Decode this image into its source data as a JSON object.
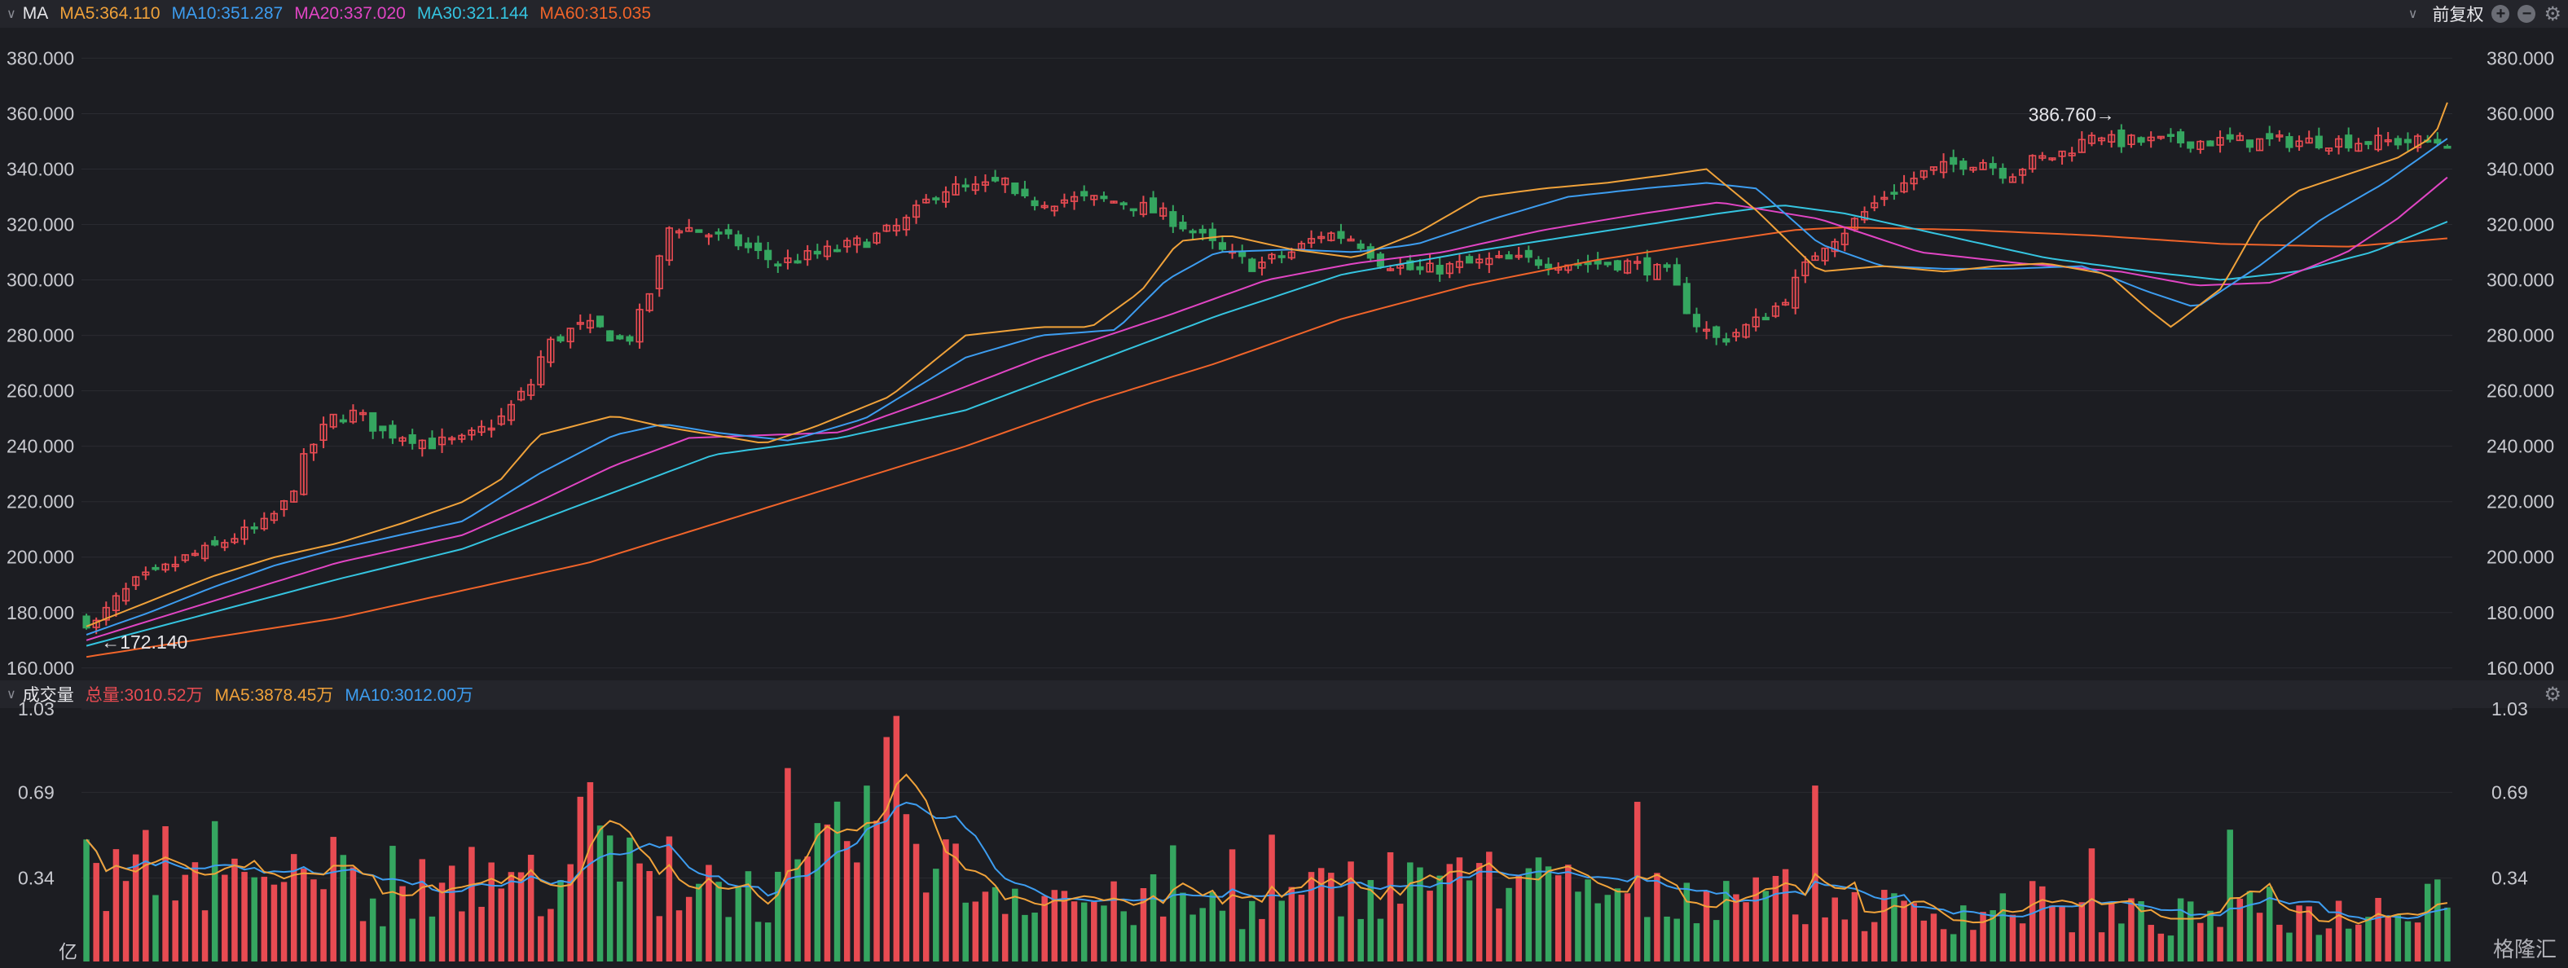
{
  "colors": {
    "up": "#e84b52",
    "down": "#35a660",
    "ma5": "#f0a23a",
    "ma10": "#3d9df0",
    "ma20": "#e145c4",
    "ma30": "#35c4e0",
    "ma60": "#f0642a",
    "grid": "#2a2b31",
    "axis": "#c8c9cf"
  },
  "price_header": {
    "name": "MA",
    "items": [
      {
        "text": "MA5:364.110",
        "color": "#f0a23a"
      },
      {
        "text": "MA10:351.287",
        "color": "#3d9df0"
      },
      {
        "text": "MA20:337.020",
        "color": "#e145c4"
      },
      {
        "text": "MA30:321.144",
        "color": "#35c4e0"
      },
      {
        "text": "MA60:315.035",
        "color": "#f0642a"
      }
    ],
    "adjust_label": "前复权"
  },
  "volume_header": {
    "name": "成交量",
    "items": [
      {
        "text": "总量:3010.52万",
        "color": "#e84b52"
      },
      {
        "text": "MA5:3878.45万",
        "color": "#f0a23a"
      },
      {
        "text": "MA10:3012.00万",
        "color": "#3d9df0"
      }
    ]
  },
  "watermark": "格隆汇",
  "chart_data": [
    {
      "type": "candlestick",
      "y_ticks": [
        160,
        180,
        200,
        220,
        240,
        260,
        280,
        300,
        320,
        340,
        360,
        380
      ],
      "y_tick_labels": [
        "160.000",
        "180.000",
        "200.000",
        "220.000",
        "240.000",
        "260.000",
        "280.000",
        "300.000",
        "320.000",
        "340.000",
        "360.000",
        "380.000"
      ],
      "ylim": [
        157,
        391
      ],
      "bar_count": 240,
      "high_annotation": "386.760→",
      "low_annotation": "←172.140",
      "close_anchors": [
        [
          0,
          177
        ],
        [
          8,
          176
        ],
        [
          20,
          183
        ],
        [
          40,
          191
        ],
        [
          60,
          195
        ],
        [
          80,
          200
        ],
        [
          100,
          203
        ],
        [
          115,
          207
        ],
        [
          140,
          211
        ],
        [
          160,
          220
        ],
        [
          175,
          237
        ],
        [
          195,
          250
        ],
        [
          215,
          252
        ],
        [
          235,
          245
        ],
        [
          255,
          244
        ],
        [
          275,
          241
        ],
        [
          300,
          242
        ],
        [
          330,
          250
        ],
        [
          355,
          263
        ],
        [
          365,
          276
        ],
        [
          390,
          283
        ],
        [
          405,
          283
        ],
        [
          430,
          277
        ],
        [
          446,
          292
        ],
        [
          465,
          320
        ],
        [
          485,
          318
        ],
        [
          500,
          316
        ],
        [
          520,
          313
        ],
        [
          550,
          306
        ],
        [
          580,
          309
        ],
        [
          620,
          314
        ],
        [
          650,
          320
        ],
        [
          680,
          333
        ],
        [
          710,
          333
        ],
        [
          735,
          336
        ],
        [
          740,
          328
        ],
        [
          780,
          329
        ],
        [
          800,
          329
        ],
        [
          830,
          328
        ],
        [
          860,
          323
        ],
        [
          880,
          318
        ],
        [
          905,
          310
        ],
        [
          930,
          305
        ],
        [
          960,
          310
        ],
        [
          985,
          317
        ],
        [
          1010,
          315
        ],
        [
          1030,
          307
        ],
        [
          1060,
          303
        ],
        [
          1090,
          305
        ],
        [
          1120,
          307
        ],
        [
          1150,
          307
        ],
        [
          1190,
          306
        ],
        [
          1230,
          306
        ],
        [
          1260,
          302
        ],
        [
          1280,
          285
        ],
        [
          1300,
          278
        ],
        [
          1330,
          285
        ],
        [
          1350,
          292
        ],
        [
          1380,
          312
        ],
        [
          1400,
          318
        ],
        [
          1430,
          330
        ],
        [
          1460,
          338
        ],
        [
          1490,
          342
        ],
        [
          1510,
          343
        ],
        [
          1530,
          338
        ],
        [
          1550,
          343
        ],
        [
          1570,
          345
        ],
        [
          1590,
          350
        ],
        [
          1600,
          355
        ],
        [
          1610,
          350
        ]
      ],
      "ma5_anchors": [
        [
          0,
          175
        ],
        [
          50,
          184
        ],
        [
          100,
          193
        ],
        [
          150,
          200
        ],
        [
          200,
          205
        ],
        [
          250,
          212
        ],
        [
          300,
          220
        ],
        [
          330,
          228
        ],
        [
          360,
          244
        ],
        [
          420,
          251
        ],
        [
          460,
          247
        ],
        [
          500,
          244
        ],
        [
          540,
          241
        ],
        [
          580,
          247
        ],
        [
          640,
          258
        ],
        [
          700,
          280
        ],
        [
          760,
          283
        ],
        [
          800,
          283
        ],
        [
          840,
          296
        ],
        [
          870,
          314
        ],
        [
          910,
          316
        ],
        [
          960,
          311
        ],
        [
          1010,
          308
        ],
        [
          1060,
          317
        ],
        [
          1110,
          330
        ],
        [
          1160,
          333
        ],
        [
          1210,
          335
        ],
        [
          1260,
          338
        ],
        [
          1290,
          340
        ],
        [
          1330,
          325
        ],
        [
          1380,
          303
        ],
        [
          1430,
          305
        ],
        [
          1480,
          303
        ],
        [
          1520,
          305
        ],
        [
          1560,
          306
        ],
        [
          1610,
          302
        ],
        [
          1640,
          290
        ],
        [
          1660,
          283
        ],
        [
          1700,
          297
        ],
        [
          1730,
          321
        ],
        [
          1760,
          332
        ],
        [
          1800,
          338
        ],
        [
          1840,
          344
        ],
        [
          1870,
          352
        ],
        [
          1880,
          364
        ]
      ],
      "ma10_anchors": [
        [
          0,
          172
        ],
        [
          50,
          180
        ],
        [
          100,
          189
        ],
        [
          150,
          197
        ],
        [
          200,
          203
        ],
        [
          250,
          208
        ],
        [
          300,
          213
        ],
        [
          360,
          230
        ],
        [
          420,
          244
        ],
        [
          460,
          248
        ],
        [
          500,
          245
        ],
        [
          560,
          242
        ],
        [
          620,
          250
        ],
        [
          700,
          272
        ],
        [
          760,
          280
        ],
        [
          820,
          282
        ],
        [
          860,
          300
        ],
        [
          900,
          310
        ],
        [
          960,
          311
        ],
        [
          1010,
          310
        ],
        [
          1060,
          313
        ],
        [
          1120,
          322
        ],
        [
          1180,
          330
        ],
        [
          1240,
          333
        ],
        [
          1290,
          335
        ],
        [
          1330,
          333
        ],
        [
          1380,
          313
        ],
        [
          1430,
          305
        ],
        [
          1480,
          304
        ],
        [
          1530,
          304
        ],
        [
          1590,
          305
        ],
        [
          1640,
          296
        ],
        [
          1680,
          290
        ],
        [
          1730,
          305
        ],
        [
          1780,
          322
        ],
        [
          1830,
          335
        ],
        [
          1880,
          351
        ]
      ],
      "ma20_anchors": [
        [
          0,
          170
        ],
        [
          100,
          184
        ],
        [
          200,
          198
        ],
        [
          300,
          208
        ],
        [
          360,
          220
        ],
        [
          420,
          233
        ],
        [
          480,
          243
        ],
        [
          540,
          244
        ],
        [
          600,
          245
        ],
        [
          680,
          258
        ],
        [
          760,
          272
        ],
        [
          860,
          287
        ],
        [
          940,
          300
        ],
        [
          1010,
          306
        ],
        [
          1080,
          310
        ],
        [
          1160,
          318
        ],
        [
          1240,
          324
        ],
        [
          1300,
          328
        ],
        [
          1380,
          322
        ],
        [
          1460,
          310
        ],
        [
          1540,
          306
        ],
        [
          1620,
          303
        ],
        [
          1680,
          298
        ],
        [
          1740,
          299
        ],
        [
          1800,
          310
        ],
        [
          1840,
          322
        ],
        [
          1880,
          337
        ]
      ],
      "ma30_anchors": [
        [
          0,
          168
        ],
        [
          100,
          180
        ],
        [
          200,
          192
        ],
        [
          300,
          203
        ],
        [
          400,
          220
        ],
        [
          500,
          237
        ],
        [
          600,
          243
        ],
        [
          700,
          253
        ],
        [
          800,
          270
        ],
        [
          900,
          287
        ],
        [
          1000,
          302
        ],
        [
          1100,
          310
        ],
        [
          1200,
          317
        ],
        [
          1300,
          324
        ],
        [
          1350,
          327
        ],
        [
          1400,
          324
        ],
        [
          1480,
          316
        ],
        [
          1560,
          308
        ],
        [
          1640,
          303
        ],
        [
          1700,
          300
        ],
        [
          1760,
          303
        ],
        [
          1820,
          310
        ],
        [
          1880,
          321
        ]
      ],
      "ma60_anchors": [
        [
          0,
          164
        ],
        [
          200,
          178
        ],
        [
          400,
          198
        ],
        [
          500,
          212
        ],
        [
          600,
          226
        ],
        [
          700,
          240
        ],
        [
          800,
          256
        ],
        [
          900,
          270
        ],
        [
          1000,
          286
        ],
        [
          1100,
          298
        ],
        [
          1200,
          307
        ],
        [
          1300,
          314
        ],
        [
          1360,
          318
        ],
        [
          1400,
          319
        ],
        [
          1500,
          318
        ],
        [
          1600,
          316
        ],
        [
          1700,
          313
        ],
        [
          1800,
          312
        ],
        [
          1880,
          315
        ]
      ]
    },
    {
      "type": "bar",
      "y_ticks": [
        0.34,
        0.69,
        1.03
      ],
      "y_tick_labels": [
        "0.34",
        "0.69",
        "1.03"
      ],
      "unit_label": "亿",
      "ylim": [
        0,
        1.03
      ],
      "vol_anchors": [
        [
          0,
          0.35
        ],
        [
          20,
          0.33
        ],
        [
          40,
          0.34
        ],
        [
          60,
          0.42
        ],
        [
          70,
          0.38
        ],
        [
          90,
          0.34
        ],
        [
          110,
          0.3
        ],
        [
          130,
          0.29
        ],
        [
          150,
          0.27
        ],
        [
          170,
          0.33
        ],
        [
          175,
          0.62
        ],
        [
          185,
          0.4
        ],
        [
          200,
          0.36
        ],
        [
          220,
          0.3
        ],
        [
          240,
          0.24
        ],
        [
          260,
          0.3
        ],
        [
          290,
          0.27
        ],
        [
          310,
          0.26
        ],
        [
          330,
          0.33
        ],
        [
          350,
          0.3
        ],
        [
          370,
          0.36
        ],
        [
          390,
          0.4
        ],
        [
          400,
          0.58
        ],
        [
          420,
          0.4
        ],
        [
          440,
          0.32
        ],
        [
          460,
          0.28
        ],
        [
          480,
          0.31
        ],
        [
          500,
          0.34
        ],
        [
          520,
          0.28
        ],
        [
          545,
          0.26
        ],
        [
          565,
          0.3
        ],
        [
          580,
          0.37
        ],
        [
          600,
          0.45
        ],
        [
          620,
          0.56
        ],
        [
          640,
          0.72
        ],
        [
          660,
          0.55
        ],
        [
          680,
          0.4
        ],
        [
          700,
          0.31
        ],
        [
          730,
          0.29
        ],
        [
          760,
          0.29
        ],
        [
          790,
          0.25
        ],
        [
          820,
          0.22
        ],
        [
          850,
          0.24
        ],
        [
          880,
          0.2
        ],
        [
          900,
          0.23
        ],
        [
          940,
          0.2
        ],
        [
          970,
          0.25
        ],
        [
          1000,
          0.3
        ],
        [
          1030,
          0.31
        ],
        [
          1060,
          0.36
        ],
        [
          1090,
          0.29
        ],
        [
          1110,
          0.35
        ],
        [
          1130,
          0.33
        ],
        [
          1160,
          0.3
        ],
        [
          1200,
          0.27
        ],
        [
          1240,
          0.24
        ],
        [
          1280,
          0.27
        ],
        [
          1310,
          0.3
        ],
        [
          1340,
          0.27
        ],
        [
          1380,
          0.25
        ],
        [
          1420,
          0.21
        ],
        [
          1460,
          0.19
        ],
        [
          1500,
          0.2
        ],
        [
          1540,
          0.22
        ],
        [
          1580,
          0.19
        ],
        [
          1620,
          0.18
        ],
        [
          1660,
          0.17
        ],
        [
          1700,
          0.19
        ],
        [
          1740,
          0.2
        ],
        [
          1780,
          0.18
        ],
        [
          1820,
          0.2
        ],
        [
          1860,
          0.28
        ],
        [
          1880,
          0.3
        ]
      ]
    }
  ]
}
